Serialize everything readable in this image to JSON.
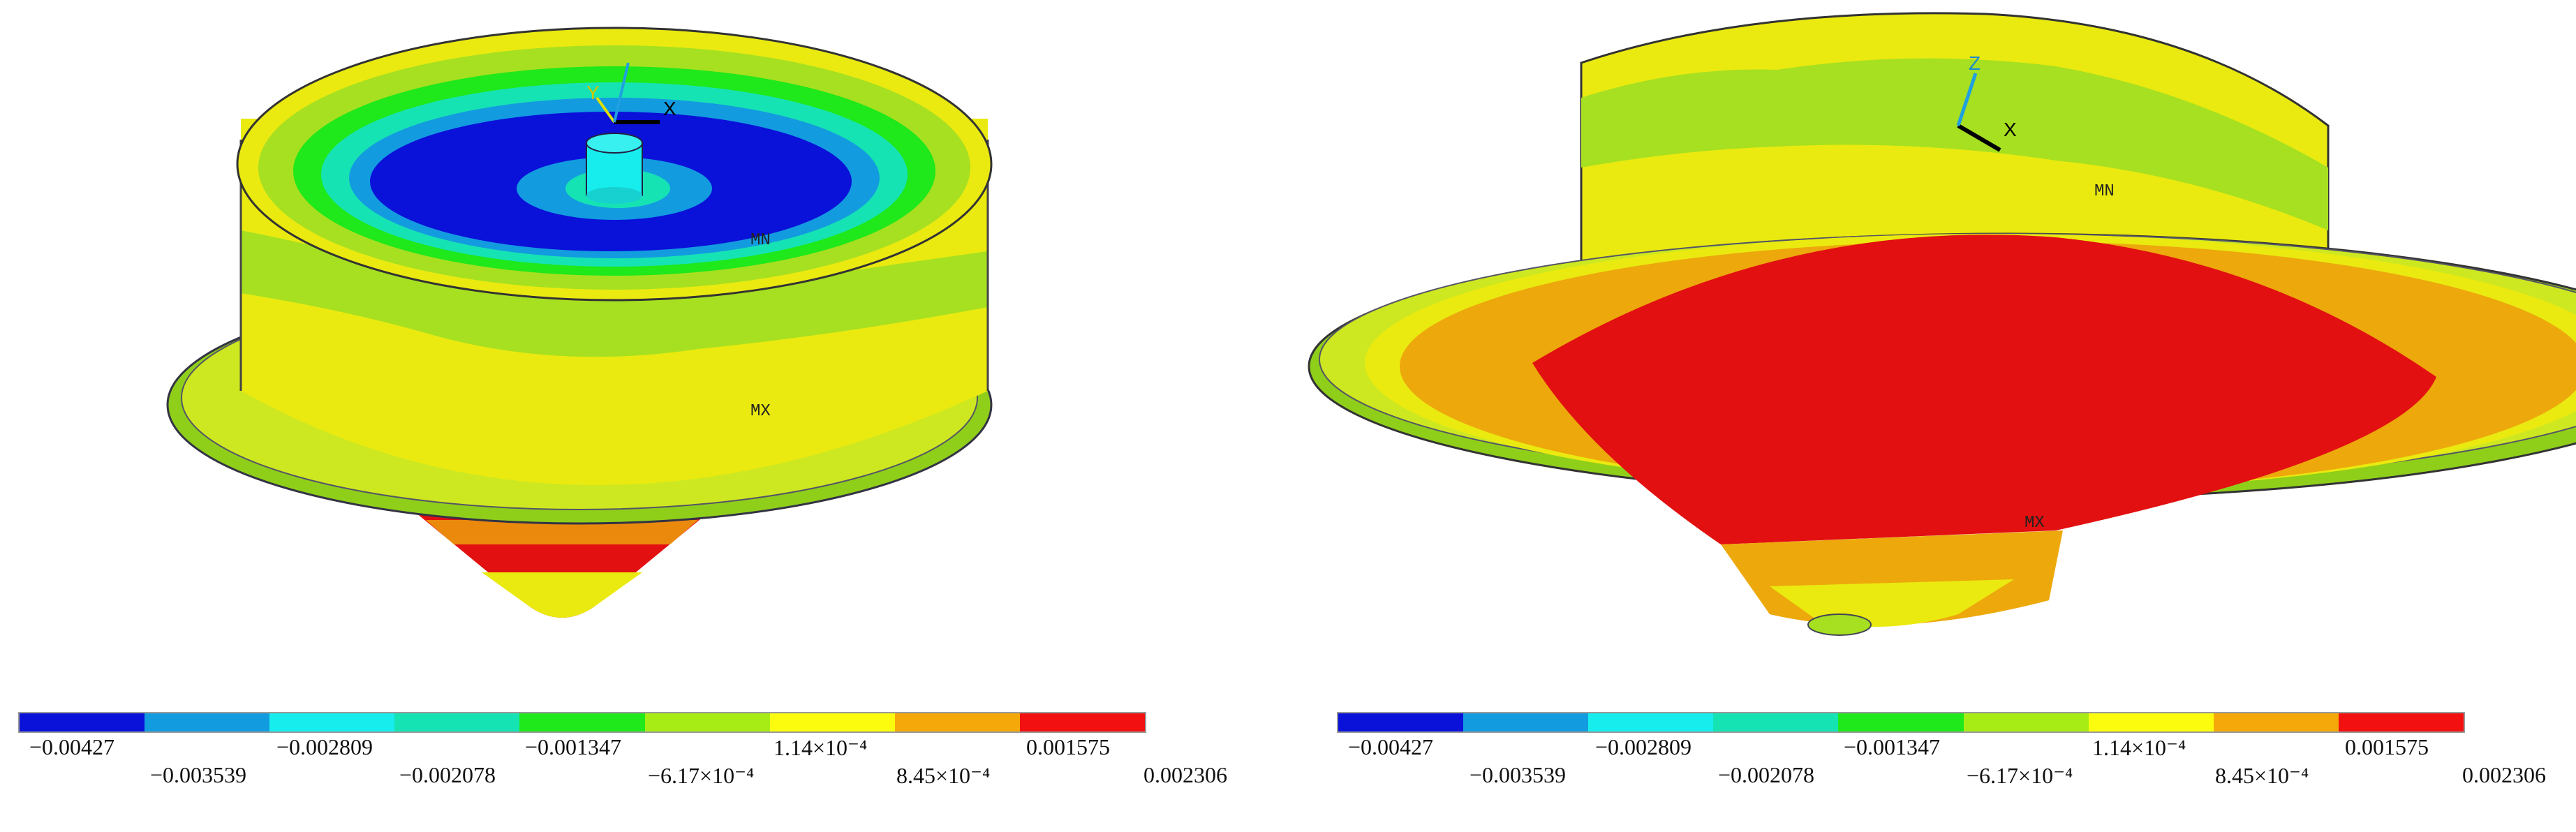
{
  "colors": {
    "scale": [
      "#0a11d8",
      "#139be0",
      "#17eded",
      "#16e3b3",
      "#1fe81b",
      "#a8ec16",
      "#fcfc0e",
      "#f5a80a",
      "#f21010"
    ],
    "model_yellow": "#eaea10",
    "model_green": "#a6e020",
    "model_red": "#e21010",
    "model_orange": "#eda80c"
  },
  "legend_ticks": [
    "−0.00427",
    "−0.003539",
    "−0.002809",
    "−0.002078",
    "−0.001347",
    "−6.17×10⁻⁴",
    "1.14×10⁻⁴",
    "8.45×10⁻⁴",
    "0.001575",
    "0.002306"
  ],
  "left_view": {
    "markers": {
      "min": "MN",
      "max": "MX"
    },
    "triad": {
      "x": "X",
      "y": "Y"
    }
  },
  "right_view": {
    "markers": {
      "min": "MN",
      "max": "MX"
    },
    "triad": {
      "x": "X",
      "z": "Z"
    }
  }
}
